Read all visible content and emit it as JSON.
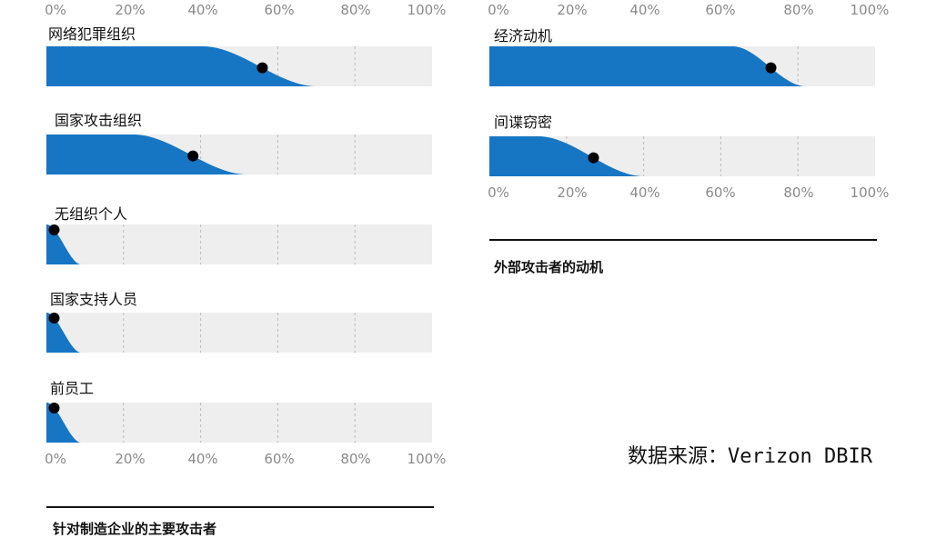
{
  "colors": {
    "fill": "#1676c4",
    "track": "#eeeeee",
    "gridline": "#bcbcbc",
    "dot": "#000000"
  },
  "source_note": "数据来源：Verizon DBIR",
  "chart_data": [
    {
      "type": "area",
      "title": "针对制造企业的主要攻击者",
      "xlim": [
        0,
        100
      ],
      "x_ticks": [
        "0%",
        "20%",
        "40%",
        "60%",
        "80%",
        "100%"
      ],
      "categories": [
        "网络犯罪组织",
        "国家攻击组织",
        "无组织个人",
        "国家支持人员",
        "前员工"
      ],
      "values": [
        56,
        38,
        2,
        2,
        2
      ],
      "distribution_end": [
        70,
        52,
        9,
        9,
        9
      ]
    },
    {
      "type": "area",
      "title": "外部攻击者的动机",
      "xlim": [
        0,
        100
      ],
      "x_ticks": [
        "0%",
        "20%",
        "40%",
        "60%",
        "80%",
        "100%"
      ],
      "categories": [
        "经济动机",
        "间谍窃密"
      ],
      "values": [
        73,
        27
      ],
      "distribution_end": [
        82,
        40
      ]
    }
  ]
}
